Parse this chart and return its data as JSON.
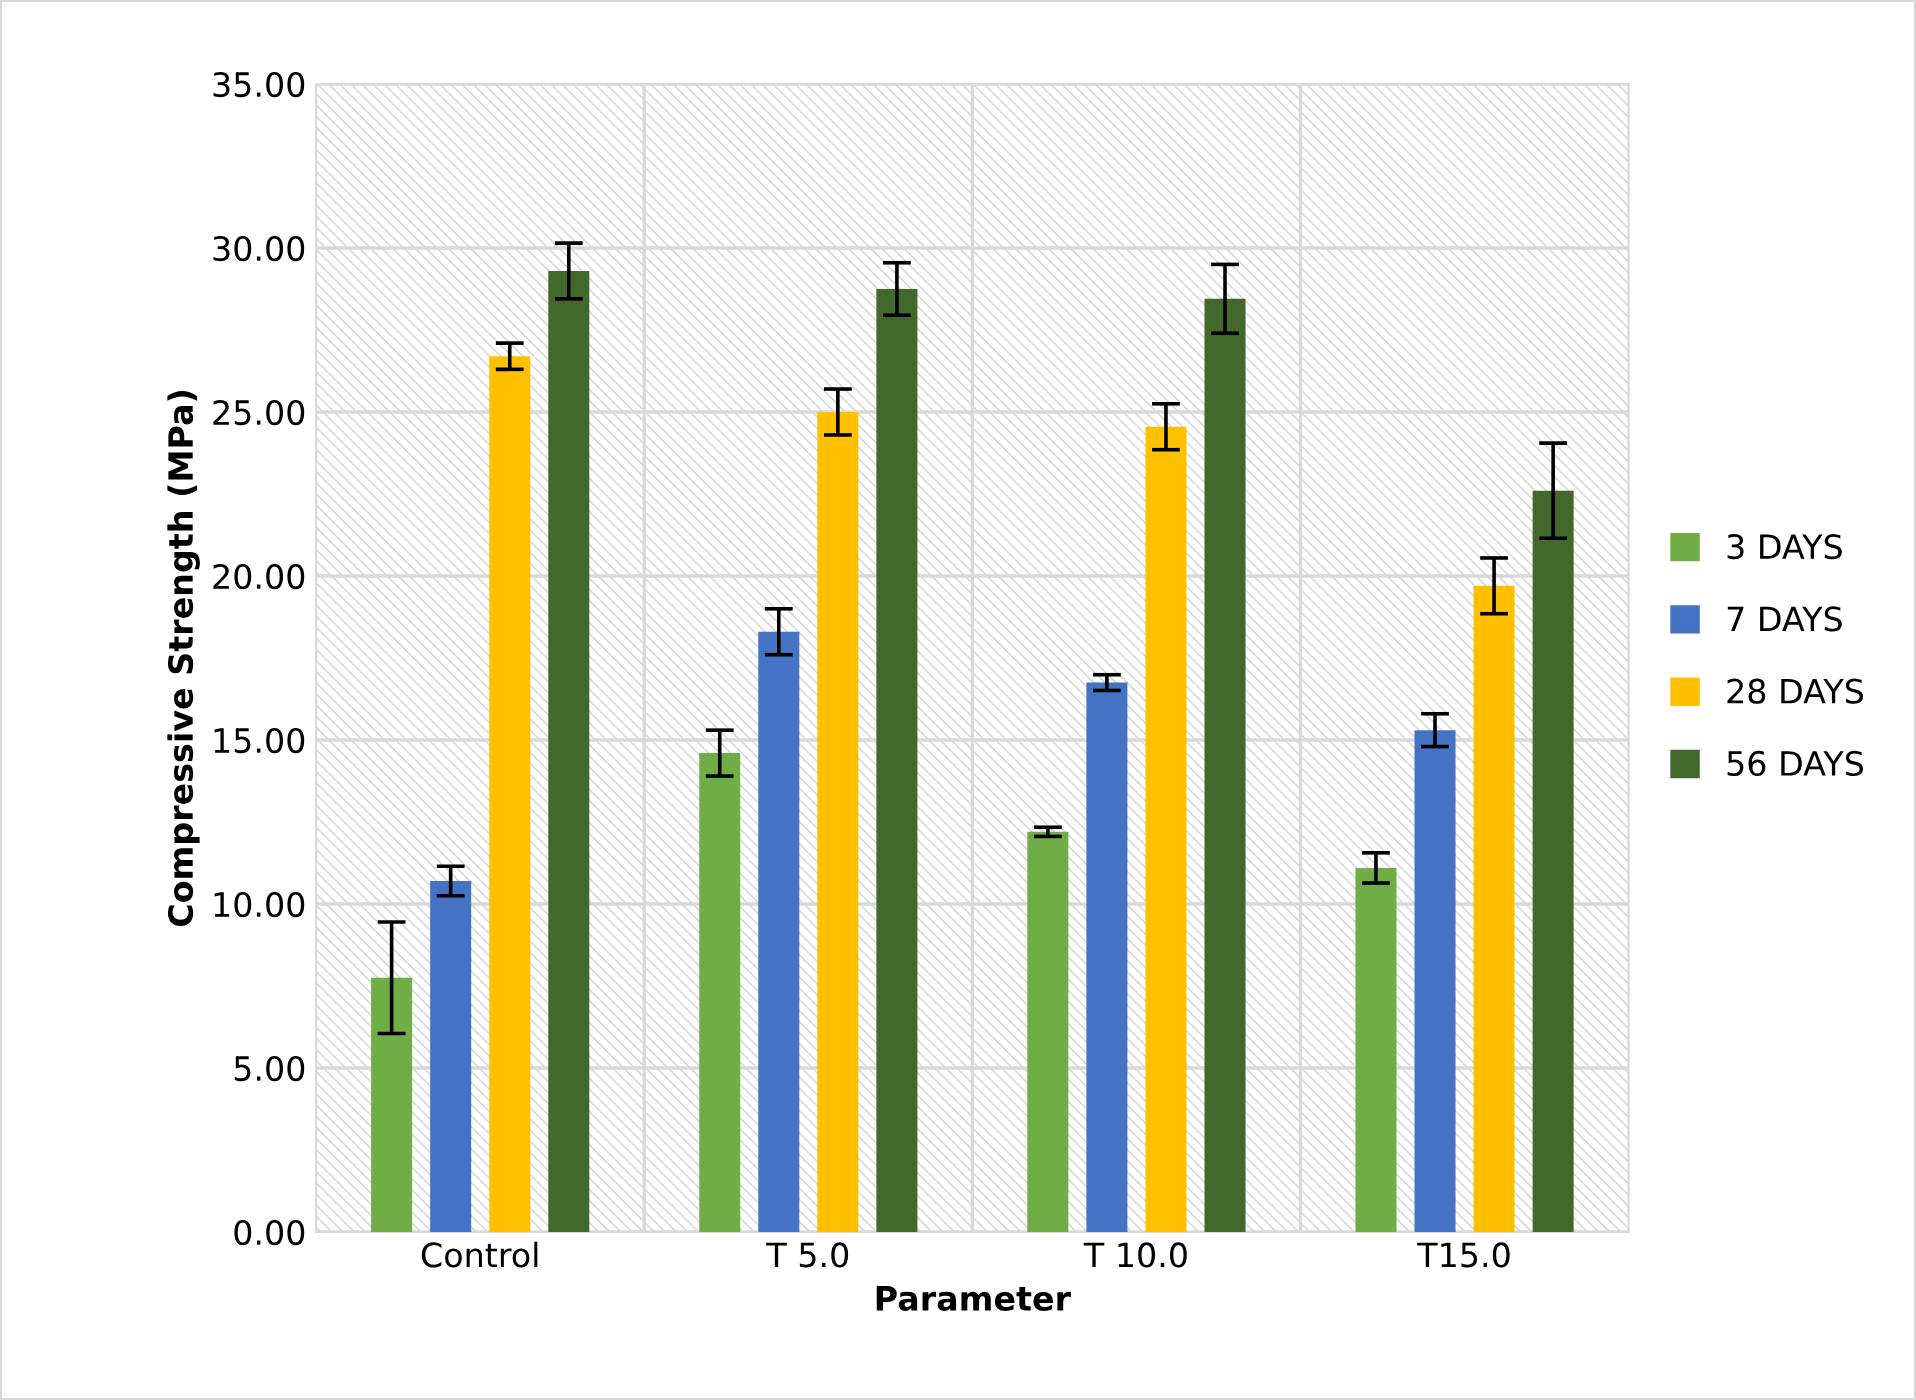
{
  "chart_data": {
    "type": "bar",
    "xlabel": "Parameter",
    "ylabel": "Compressive Strength (MPa)",
    "categories": [
      "Control",
      "T 5.0",
      "T 10.0",
      "T15.0"
    ],
    "series": [
      {
        "name": "3 DAYS",
        "color": "#70ad47",
        "values": [
          7.75,
          14.6,
          12.2,
          11.1
        ],
        "errors": [
          1.7,
          0.7,
          0.14,
          0.46
        ]
      },
      {
        "name": "7 DAYS",
        "color": "#4472c4",
        "values": [
          10.7,
          18.3,
          16.75,
          15.3
        ],
        "errors": [
          0.45,
          0.7,
          0.24,
          0.5
        ]
      },
      {
        "name": "28 DAYS",
        "color": "#ffc000",
        "values": [
          26.7,
          25.0,
          24.55,
          19.7
        ],
        "errors": [
          0.4,
          0.7,
          0.7,
          0.85
        ]
      },
      {
        "name": "56 DAYS",
        "color": "#43682b",
        "values": [
          29.3,
          28.75,
          28.45,
          22.6
        ],
        "errors": [
          0.85,
          0.8,
          1.05,
          1.45
        ]
      }
    ],
    "ylim": [
      0,
      35
    ],
    "yticks": [
      {
        "value": 0,
        "label": "0.00"
      },
      {
        "value": 5,
        "label": "5.00"
      },
      {
        "value": 10,
        "label": "10.00"
      },
      {
        "value": 15,
        "label": "15.00"
      },
      {
        "value": 20,
        "label": "20.00"
      },
      {
        "value": 25,
        "label": "25.00"
      },
      {
        "value": 30,
        "label": "30.00"
      },
      {
        "value": 35,
        "label": "35.00"
      }
    ],
    "grid": true,
    "legend": "right"
  }
}
